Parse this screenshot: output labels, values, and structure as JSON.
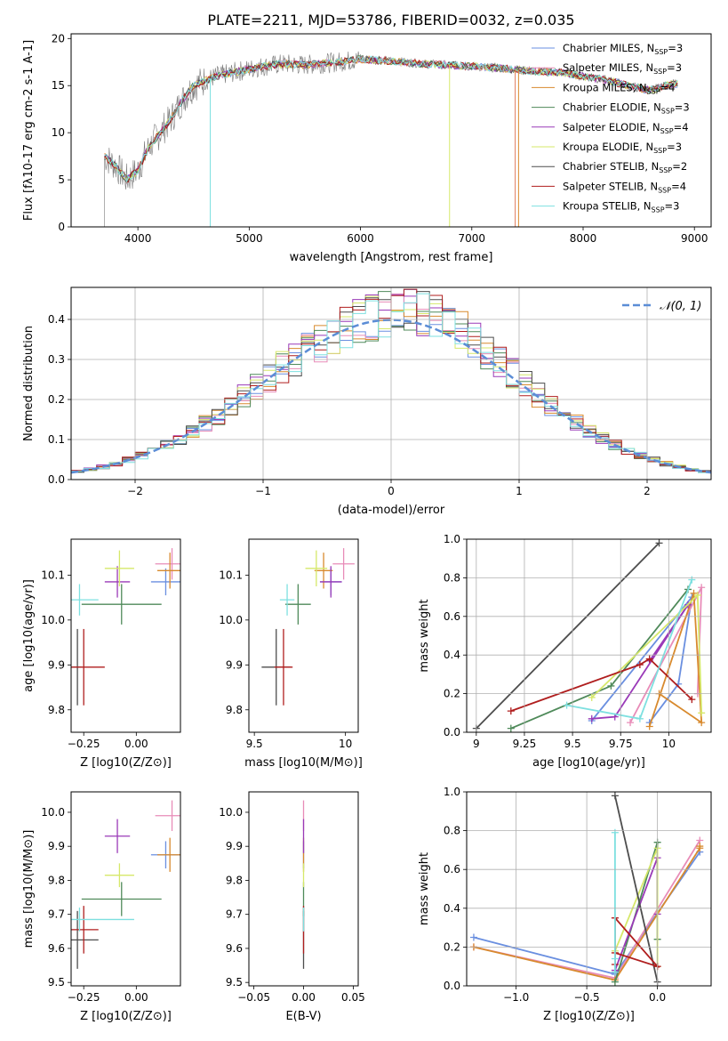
{
  "figure_title": "PLATE=2211, MJD=53786, FIBERID=0032, z=0.035",
  "model_labels": [
    "Chabrier MILES, N$_{SSP}$=3",
    "Salpeter MILES, N$_{SSP}$=3",
    "Kroupa MILES, N$_{SSP}$=4",
    "Chabrier ELODIE, N$_{SSP}$=3",
    "Salpeter ELODIE, N$_{SSP}$=4",
    "Kroupa ELODIE, N$_{SSP}$=3",
    "Chabrier STELIB, N$_{SSP}$=2",
    "Salpeter STELIB, N$_{SSP}$=4",
    "Kroupa STELIB, N$_{SSP}$=3"
  ],
  "colors": [
    "#6a8fe0",
    "#e88cb8",
    "#d88a2e",
    "#4f8a5a",
    "#9a3ab8",
    "#d6e86a",
    "#4d4d4d",
    "#b01e1e",
    "#7ee0e0"
  ],
  "chart_data": [
    {
      "id": "spectrum",
      "type": "line",
      "title": "PLATE=2211, MJD=53786, FIBERID=0032, z=0.035",
      "xlabel": "wavelength [Angstrom, rest frame]",
      "ylabel": "Flux [f$_\\lambda$10$^{-17}$ erg cm$^{-2}$ s$^{-1}$ A$^{-1}$]",
      "xlim": [
        3400,
        9150
      ],
      "ylim": [
        0,
        20.5
      ],
      "xticks": [
        4000,
        5000,
        6000,
        7000,
        8000,
        9000
      ],
      "yticks": [
        0,
        5,
        10,
        15,
        20
      ],
      "continuum": {
        "x": [
          3700,
          3800,
          3900,
          4000,
          4100,
          4200,
          4300,
          4400,
          4500,
          4700,
          4900,
          5100,
          5300,
          5500,
          5800,
          6000,
          6300,
          6600,
          6900,
          7200,
          7400,
          7600,
          7800,
          8000,
          8200,
          8400,
          8600,
          8800
        ],
        "y": [
          7.5,
          6.5,
          5.0,
          6.0,
          8.5,
          10.0,
          11.5,
          13.5,
          15.0,
          16.0,
          16.5,
          17.0,
          17.3,
          17.2,
          17.5,
          17.8,
          17.6,
          17.3,
          17.1,
          16.9,
          16.7,
          16.5,
          16.4,
          16.0,
          15.6,
          15.0,
          14.5,
          15.2
        ]
      },
      "legend_loc": "upper right",
      "grid": false
    },
    {
      "id": "residuals",
      "type": "histogram",
      "xlabel": "(data-model)/error",
      "ylabel": "Normed distribution",
      "xlim": [
        -2.5,
        2.5
      ],
      "ylim": [
        0,
        0.48
      ],
      "xticks": [
        -2,
        -1,
        0,
        1,
        2
      ],
      "yticks": [
        0.0,
        0.1,
        0.2,
        0.3,
        0.4
      ],
      "reference": {
        "label": "$\\mathcal{N}(0,1)$",
        "mean": 0,
        "sigma": 1
      },
      "legend_loc": "upper right",
      "grid": true
    },
    {
      "id": "age-vs-Z",
      "type": "scatter",
      "xlabel": "Z [log$_{10}$(Z/Z$_\\odot$)]",
      "ylabel": "age  [log$_{10}$($age/yr$)]",
      "xlim": [
        -0.31,
        0.21
      ],
      "ylim": [
        9.75,
        10.18
      ],
      "xticks": [
        -0.25,
        0.0
      ],
      "xticklabels": [
        "−0.25",
        "0.00"
      ],
      "yticks": [
        9.8,
        9.9,
        10.0,
        10.1
      ],
      "points": [
        {
          "x": 0.14,
          "y": 10.085,
          "xerr": 0.07,
          "yerr": 0.03
        },
        {
          "x": 0.17,
          "y": 10.125,
          "xerr": 0.08,
          "yerr": 0.035
        },
        {
          "x": 0.16,
          "y": 10.11,
          "xerr": 0.06,
          "yerr": 0.04
        },
        {
          "x": -0.07,
          "y": 10.035,
          "xerr": 0.19,
          "yerr": 0.045
        },
        {
          "x": -0.09,
          "y": 10.085,
          "xerr": 0.06,
          "yerr": 0.035
        },
        {
          "x": -0.08,
          "y": 10.115,
          "xerr": 0.07,
          "yerr": 0.04
        },
        {
          "x": -0.28,
          "y": 9.895,
          "xerr": 0.02,
          "yerr": 0.085
        },
        {
          "x": -0.25,
          "y": 9.895,
          "xerr": 0.1,
          "yerr": 0.085
        },
        {
          "x": -0.27,
          "y": 10.045,
          "xerr": 0.09,
          "yerr": 0.035
        }
      ]
    },
    {
      "id": "age-vs-mass",
      "type": "scatter",
      "xlabel": "mass [log$_{10}$($M/M_\\odot$)]",
      "ylabel": "",
      "xlim": [
        9.47,
        10.07
      ],
      "ylim": [
        9.75,
        10.18
      ],
      "xticks": [
        9.5,
        10.0
      ],
      "yticks": [
        9.8,
        9.9,
        10.0,
        10.1
      ],
      "points": [
        {
          "x": 9.92,
          "y": 10.085,
          "xerr": 0.06,
          "yerr": 0.03
        },
        {
          "x": 9.99,
          "y": 10.125,
          "xerr": 0.06,
          "yerr": 0.035
        },
        {
          "x": 9.88,
          "y": 10.11,
          "xerr": 0.05,
          "yerr": 0.04
        },
        {
          "x": 9.74,
          "y": 10.035,
          "xerr": 0.07,
          "yerr": 0.045
        },
        {
          "x": 9.92,
          "y": 10.085,
          "xerr": 0.06,
          "yerr": 0.035
        },
        {
          "x": 9.84,
          "y": 10.115,
          "xerr": 0.06,
          "yerr": 0.04
        },
        {
          "x": 9.62,
          "y": 9.895,
          "xerr": 0.08,
          "yerr": 0.085
        },
        {
          "x": 9.66,
          "y": 9.895,
          "xerr": 0.05,
          "yerr": 0.085
        },
        {
          "x": 9.68,
          "y": 10.045,
          "xerr": 0.04,
          "yerr": 0.035
        }
      ]
    },
    {
      "id": "weight-vs-age",
      "type": "line",
      "xlabel": "age  [log$_{10}$($age/yr$)]",
      "ylabel": "mass weight",
      "xlim": [
        8.95,
        10.22
      ],
      "ylim": [
        0,
        1.0
      ],
      "xticks": [
        9.0,
        9.25,
        9.5,
        9.75,
        10.0
      ],
      "yticks": [
        0.0,
        0.2,
        0.4,
        0.6,
        0.8,
        1.0
      ],
      "grid": true,
      "series": [
        {
          "x": [
            9.6,
            10.12,
            10.05,
            9.9
          ],
          "y": [
            0.06,
            0.7,
            0.25,
            0.05
          ]
        },
        {
          "x": [
            9.8,
            10.17,
            10.15
          ],
          "y": [
            0.05,
            0.75,
            0.2
          ]
        },
        {
          "x": [
            9.9,
            10.13,
            10.17,
            9.95
          ],
          "y": [
            0.03,
            0.72,
            0.05,
            0.2
          ]
        },
        {
          "x": [
            9.18,
            9.7,
            10.1
          ],
          "y": [
            0.02,
            0.24,
            0.74
          ]
        },
        {
          "x": [
            9.6,
            9.72,
            10.1,
            9.9
          ],
          "y": [
            0.07,
            0.08,
            0.66,
            0.37
          ]
        },
        {
          "x": [
            9.6,
            10.15,
            10.17
          ],
          "y": [
            0.18,
            0.71,
            0.1
          ]
        },
        {
          "x": [
            9.0,
            9.95
          ],
          "y": [
            0.02,
            0.98
          ]
        },
        {
          "x": [
            9.18,
            9.85,
            9.9,
            10.12
          ],
          "y": [
            0.11,
            0.35,
            0.38,
            0.17
          ]
        },
        {
          "x": [
            9.47,
            9.85,
            10.12
          ],
          "y": [
            0.14,
            0.07,
            0.79
          ]
        }
      ]
    },
    {
      "id": "mass-vs-Z",
      "type": "scatter",
      "xlabel": "Z [log$_{10}$(Z/Z$_\\odot$)]",
      "ylabel": "mass [log$_{10}$($M/M_\\odot$)]",
      "xlim": [
        -0.31,
        0.21
      ],
      "ylim": [
        9.49,
        10.06
      ],
      "xticks": [
        -0.25,
        0.0
      ],
      "xticklabels": [
        "−0.25",
        "0.00"
      ],
      "yticks": [
        9.5,
        9.6,
        9.7,
        9.8,
        9.9,
        10.0
      ],
      "points": [
        {
          "x": 0.14,
          "y": 9.875,
          "xerr": 0.07,
          "yerr": 0.04
        },
        {
          "x": 0.17,
          "y": 9.99,
          "xerr": 0.08,
          "yerr": 0.045
        },
        {
          "x": 0.16,
          "y": 9.875,
          "xerr": 0.06,
          "yerr": 0.05
        },
        {
          "x": -0.07,
          "y": 9.745,
          "xerr": 0.19,
          "yerr": 0.05
        },
        {
          "x": -0.09,
          "y": 9.93,
          "xerr": 0.06,
          "yerr": 0.05
        },
        {
          "x": -0.08,
          "y": 9.815,
          "xerr": 0.07,
          "yerr": 0.035
        },
        {
          "x": -0.28,
          "y": 9.625,
          "xerr": 0.1,
          "yerr": 0.085
        },
        {
          "x": -0.25,
          "y": 9.655,
          "xerr": 0.07,
          "yerr": 0.07
        },
        {
          "x": -0.27,
          "y": 9.685,
          "xerr": 0.26,
          "yerr": 0.035
        }
      ]
    },
    {
      "id": "mass-vs-ebv",
      "type": "scatter",
      "xlabel": "E(B-V)",
      "ylabel": "",
      "xlim": [
        -0.055,
        0.055
      ],
      "ylim": [
        9.49,
        10.06
      ],
      "xticks": [
        -0.05,
        0.0,
        0.05
      ],
      "xticklabels": [
        "−0.05",
        "0.00",
        "0.05"
      ],
      "yticks": [
        9.5,
        9.6,
        9.7,
        9.8,
        9.9,
        10.0
      ],
      "points": [
        {
          "x": 0,
          "y": 9.875,
          "xerr": 0,
          "yerr": 0.04
        },
        {
          "x": 0,
          "y": 9.99,
          "xerr": 0,
          "yerr": 0.045
        },
        {
          "x": 0,
          "y": 9.875,
          "xerr": 0,
          "yerr": 0.05
        },
        {
          "x": 0,
          "y": 9.745,
          "xerr": 0,
          "yerr": 0.05
        },
        {
          "x": 0,
          "y": 9.93,
          "xerr": 0,
          "yerr": 0.05
        },
        {
          "x": 0,
          "y": 9.815,
          "xerr": 0,
          "yerr": 0.035
        },
        {
          "x": 0,
          "y": 9.625,
          "xerr": 0,
          "yerr": 0.085
        },
        {
          "x": 0,
          "y": 9.655,
          "xerr": 0,
          "yerr": 0.07
        },
        {
          "x": 0,
          "y": 9.685,
          "xerr": 0,
          "yerr": 0.035
        }
      ]
    },
    {
      "id": "weight-vs-Z",
      "type": "line",
      "xlabel": "Z [log$_{10}$(Z/Z$_\\odot$)]",
      "ylabel": "mass weight",
      "xlim": [
        -1.35,
        0.38
      ],
      "ylim": [
        0,
        1.0
      ],
      "xticks": [
        -1.0,
        -0.5,
        0.0
      ],
      "xticklabels": [
        "−1.0",
        "−0.5",
        "0.0"
      ],
      "yticks": [
        0.0,
        0.2,
        0.4,
        0.6,
        0.8,
        1.0
      ],
      "grid": true,
      "series": [
        {
          "x": [
            -1.3,
            -0.3,
            0.3
          ],
          "y": [
            0.25,
            0.06,
            0.69
          ]
        },
        {
          "x": [
            -1.3,
            -0.3,
            0.3
          ],
          "y": [
            0.2,
            0.04,
            0.75
          ]
        },
        {
          "x": [
            -1.3,
            -0.3,
            0.3,
            0.3
          ],
          "y": [
            0.2,
            0.03,
            0.71,
            0.72
          ]
        },
        {
          "x": [
            -0.3,
            0.0,
            0.0
          ],
          "y": [
            0.02,
            0.74,
            0.24
          ]
        },
        {
          "x": [
            -0.3,
            -0.3,
            0.0,
            0.0
          ],
          "y": [
            0.07,
            0.08,
            0.66,
            0.37
          ]
        },
        {
          "x": [
            -0.3,
            0.0,
            0.0
          ],
          "y": [
            0.18,
            0.71,
            0.1
          ]
        },
        {
          "x": [
            -0.3,
            0.0
          ],
          "y": [
            0.98,
            0.02
          ]
        },
        {
          "x": [
            -0.3,
            -0.3,
            0.0,
            -0.3
          ],
          "y": [
            0.11,
            0.35,
            0.1,
            0.17
          ]
        },
        {
          "x": [
            -0.3,
            -0.3,
            -0.3
          ],
          "y": [
            0.14,
            0.07,
            0.79
          ]
        }
      ]
    }
  ]
}
